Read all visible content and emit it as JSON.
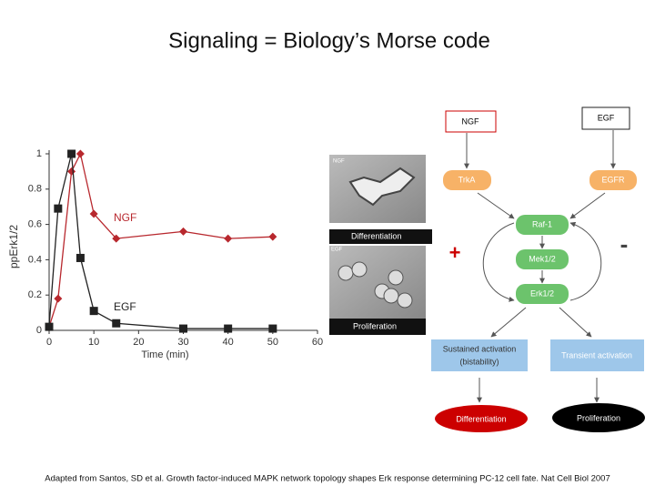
{
  "title": "Signaling = Biology’s Morse code",
  "chart_data": {
    "type": "line",
    "xlabel": "Time (min)",
    "ylabel": "ppErk1/2",
    "xlim": [
      0,
      60
    ],
    "xticks": [
      0,
      10,
      20,
      30,
      40,
      50,
      60
    ],
    "ylim": [
      0,
      1
    ],
    "yticks": [
      0,
      0.2,
      0.4,
      0.6,
      0.8,
      1
    ],
    "series": [
      {
        "name": "NGF",
        "color": "#b8282e",
        "marker": "diamond",
        "x": [
          0,
          2,
          5,
          7,
          10,
          15,
          30,
          40,
          50
        ],
        "values": [
          0.02,
          0.18,
          0.9,
          1.0,
          0.66,
          0.52,
          0.56,
          0.52,
          0.53
        ]
      },
      {
        "name": "EGF",
        "color": "#222222",
        "marker": "square",
        "x": [
          0,
          2,
          5,
          7,
          10,
          15,
          30,
          40,
          50
        ],
        "values": [
          0.02,
          0.69,
          1.0,
          0.41,
          0.11,
          0.04,
          0.01,
          0.01,
          0.01
        ]
      }
    ]
  },
  "images": {
    "top_label": "NGF",
    "top_caption": "Differentiation",
    "bottom_label": "EGF",
    "bottom_caption": "Proliferation"
  },
  "diagram": {
    "ligands": [
      "NGF",
      "EGF"
    ],
    "receptors": [
      "TrkA",
      "EGFR"
    ],
    "cascade": [
      "Raf-1",
      "Mek1/2",
      "Erk1/2"
    ],
    "positive": "+",
    "negative": "-",
    "sustained": [
      "Sustained activation",
      "(bistability)"
    ],
    "transient": "Transient activation",
    "outcomes": [
      "Differentiation",
      "Proliferation"
    ]
  },
  "footer": "Adapted from Santos, SD et al. Growth factor-induced MAPK network topology shapes Erk response determining PC-12 cell fate. Nat Cell Biol 2007"
}
